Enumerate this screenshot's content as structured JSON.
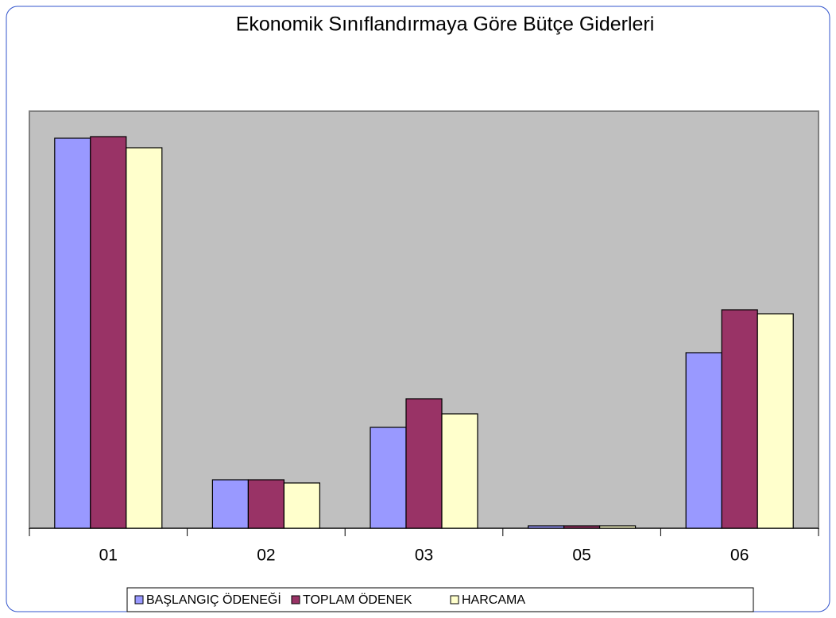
{
  "chart_data": {
    "type": "bar",
    "title": "Ekonomik Sınıflandırmaya Göre Bütçe Giderleri",
    "categories": [
      "01",
      "02",
      "03",
      "05",
      "06"
    ],
    "series": [
      {
        "name": "BAŞLANGIÇ ÖDENEĞİ",
        "color": "#9999ff",
        "values": [
          491,
          61,
          127,
          3,
          221
        ]
      },
      {
        "name": "TOPLAM ÖDENEK",
        "color": "#993366",
        "values": [
          493,
          61,
          163,
          3,
          275
        ]
      },
      {
        "name": "HARCAMA",
        "color": "#ffffcc",
        "values": [
          479,
          57,
          144,
          3,
          270
        ]
      }
    ],
    "ylim": [
      0,
      525
    ],
    "legend": "bottom"
  }
}
